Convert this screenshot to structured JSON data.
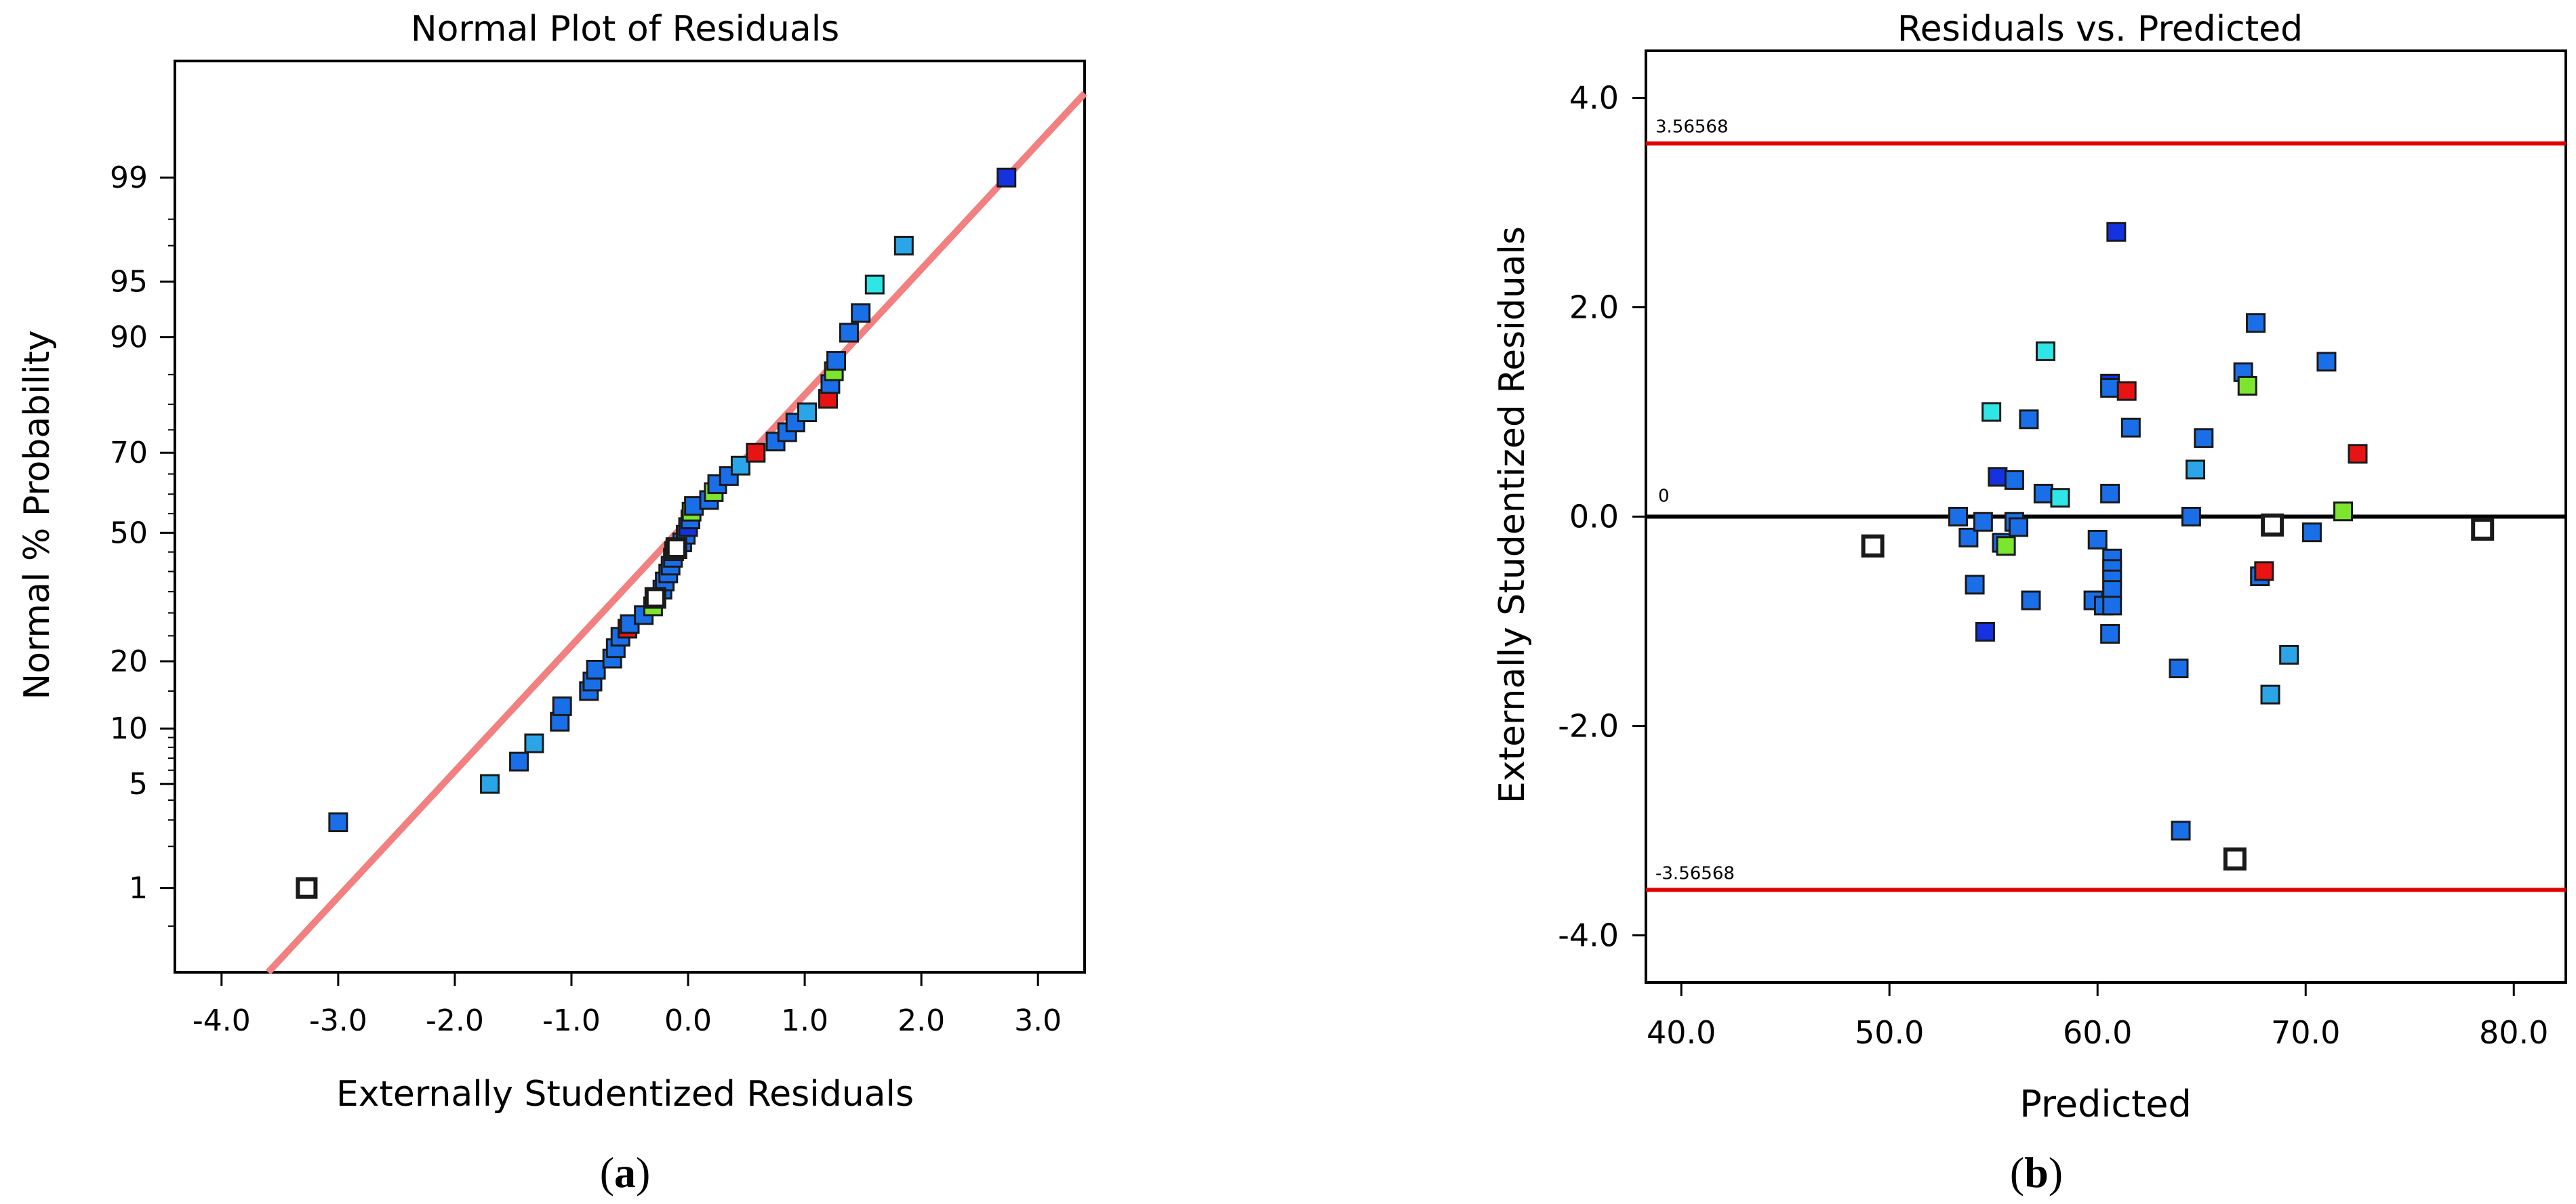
{
  "colors": {
    "frame": "#000000",
    "reference_line": "#f28080",
    "limit_line": "#e00000",
    "zero_line": "#000000",
    "point_stroke": "#1a1a1a",
    "outlier_fill": "#ffffff",
    "palette": {
      "dark_blue": "#1432e0",
      "blue": "#1a6fe8",
      "sky": "#2aa6e8",
      "cyan": "#2ee6e6",
      "green": "#7ce62e",
      "red": "#e81414",
      "white": "#ffffff"
    }
  },
  "chart_data": [
    {
      "type": "scatter",
      "title": "Normal Plot of Residuals",
      "xlabel": "Externally Studentized Residuals",
      "ylabel": "Normal % Probability",
      "caption_letter": "a",
      "xlim": [
        -4.4,
        3.4
      ],
      "ylim": [
        0.2,
        99.9
      ],
      "y_scale": "normal-probability",
      "x_ticks": [
        -4.0,
        -3.0,
        -2.0,
        -1.0,
        0.0,
        1.0,
        2.0,
        3.0
      ],
      "x_tick_labels": [
        "-4.0",
        "-3.0",
        "-2.0",
        "-1.0",
        "0.0",
        "1.0",
        "2.0",
        "3.0"
      ],
      "y_ticks": [
        1,
        5,
        10,
        20,
        50,
        70,
        90,
        95,
        99
      ],
      "y_tick_labels": [
        "1",
        "5",
        "10",
        "20",
        "50",
        "70",
        "90",
        "95",
        "99"
      ],
      "reference_line": {
        "x_start": -3.6,
        "y_start": 0.2,
        "x_end": 3.4,
        "y_end": 99.8
      },
      "points": [
        {
          "x": -3.27,
          "y": 1.0,
          "c": "white",
          "outlier": true
        },
        {
          "x": -3.0,
          "y": 2.9,
          "c": "blue"
        },
        {
          "x": -1.7,
          "y": 5.0,
          "c": "sky"
        },
        {
          "x": -1.45,
          "y": 6.7,
          "c": "blue"
        },
        {
          "x": -1.32,
          "y": 8.4,
          "c": "sky"
        },
        {
          "x": -1.1,
          "y": 10.8,
          "c": "blue"
        },
        {
          "x": -1.08,
          "y": 12.8,
          "c": "blue"
        },
        {
          "x": -0.85,
          "y": 15.0,
          "c": "blue"
        },
        {
          "x": -0.82,
          "y": 16.5,
          "c": "blue"
        },
        {
          "x": -0.79,
          "y": 18.5,
          "c": "blue"
        },
        {
          "x": -0.65,
          "y": 20.5,
          "c": "blue"
        },
        {
          "x": -0.62,
          "y": 22.5,
          "c": "blue"
        },
        {
          "x": -0.58,
          "y": 24.8,
          "c": "blue"
        },
        {
          "x": -0.52,
          "y": 26.5,
          "c": "red"
        },
        {
          "x": -0.5,
          "y": 27.5,
          "c": "blue"
        },
        {
          "x": -0.38,
          "y": 29.5,
          "c": "blue"
        },
        {
          "x": -0.3,
          "y": 31.5,
          "c": "green"
        },
        {
          "x": -0.28,
          "y": 33.5,
          "c": "white",
          "outlier": true
        },
        {
          "x": -0.22,
          "y": 35.5,
          "c": "blue"
        },
        {
          "x": -0.2,
          "y": 37.5,
          "c": "blue"
        },
        {
          "x": -0.17,
          "y": 39.5,
          "c": "blue"
        },
        {
          "x": -0.15,
          "y": 41.5,
          "c": "blue"
        },
        {
          "x": -0.13,
          "y": 43.5,
          "c": "blue"
        },
        {
          "x": -0.12,
          "y": 45.2,
          "c": "blue"
        },
        {
          "x": -0.1,
          "y": 46.0,
          "c": "white",
          "outlier": true
        },
        {
          "x": -0.05,
          "y": 47.5,
          "c": "blue"
        },
        {
          "x": -0.02,
          "y": 49.5,
          "c": "blue"
        },
        {
          "x": 0.0,
          "y": 51.5,
          "c": "dark_blue"
        },
        {
          "x": 0.02,
          "y": 53.5,
          "c": "blue"
        },
        {
          "x": 0.03,
          "y": 55.5,
          "c": "green"
        },
        {
          "x": 0.05,
          "y": 57.0,
          "c": "blue"
        },
        {
          "x": 0.18,
          "y": 58.5,
          "c": "blue"
        },
        {
          "x": 0.22,
          "y": 60.5,
          "c": "green"
        },
        {
          "x": 0.25,
          "y": 62.5,
          "c": "blue"
        },
        {
          "x": 0.35,
          "y": 64.5,
          "c": "blue"
        },
        {
          "x": 0.45,
          "y": 67.0,
          "c": "sky"
        },
        {
          "x": 0.58,
          "y": 70.0,
          "c": "red"
        },
        {
          "x": 0.75,
          "y": 72.5,
          "c": "blue"
        },
        {
          "x": 0.85,
          "y": 74.5,
          "c": "blue"
        },
        {
          "x": 0.92,
          "y": 76.5,
          "c": "blue"
        },
        {
          "x": 1.02,
          "y": 78.5,
          "c": "sky"
        },
        {
          "x": 1.2,
          "y": 81.0,
          "c": "red"
        },
        {
          "x": 1.22,
          "y": 83.5,
          "c": "blue"
        },
        {
          "x": 1.25,
          "y": 85.5,
          "c": "green"
        },
        {
          "x": 1.27,
          "y": 87.0,
          "c": "blue"
        },
        {
          "x": 1.38,
          "y": 90.5,
          "c": "blue"
        },
        {
          "x": 1.48,
          "y": 92.5,
          "c": "blue"
        },
        {
          "x": 1.6,
          "y": 94.8,
          "c": "cyan"
        },
        {
          "x": 1.85,
          "y": 97.0,
          "c": "sky"
        },
        {
          "x": 2.73,
          "y": 99.0,
          "c": "dark_blue"
        }
      ]
    },
    {
      "type": "scatter",
      "title": "Residuals vs. Predicted",
      "xlabel": "Predicted",
      "ylabel": "Externally Studentized Residuals",
      "caption_letter": "b",
      "xlim": [
        38.3,
        82.5
      ],
      "ylim": [
        -4.45,
        4.45
      ],
      "x_ticks": [
        40.0,
        50.0,
        60.0,
        70.0,
        80.0
      ],
      "x_tick_labels": [
        "40.0",
        "50.0",
        "60.0",
        "70.0",
        "80.0"
      ],
      "y_ticks": [
        4.0,
        2.0,
        0.0,
        -2.0,
        -4.0
      ],
      "y_tick_labels": [
        "4.0",
        "2.0",
        "0.0",
        "-2.0",
        "-4.0"
      ],
      "limit_upper": 3.56568,
      "limit_upper_label": "3.56568",
      "limit_lower": -3.56568,
      "limit_lower_label": "-3.56568",
      "zero_line": 0,
      "zero_label": "0",
      "points": [
        {
          "x": 49.2,
          "y": -0.28,
          "c": "white",
          "outlier": true
        },
        {
          "x": 53.3,
          "y": 0.0,
          "c": "blue"
        },
        {
          "x": 53.8,
          "y": -0.2,
          "c": "blue"
        },
        {
          "x": 54.1,
          "y": -0.65,
          "c": "blue"
        },
        {
          "x": 54.5,
          "y": -0.05,
          "c": "blue"
        },
        {
          "x": 54.6,
          "y": -1.1,
          "c": "dark_blue"
        },
        {
          "x": 54.9,
          "y": 1.0,
          "c": "cyan"
        },
        {
          "x": 55.2,
          "y": 0.38,
          "c": "dark_blue"
        },
        {
          "x": 55.4,
          "y": -0.25,
          "c": "blue"
        },
        {
          "x": 55.6,
          "y": -0.28,
          "c": "green"
        },
        {
          "x": 56.0,
          "y": 0.35,
          "c": "blue"
        },
        {
          "x": 56.0,
          "y": -0.05,
          "c": "blue"
        },
        {
          "x": 56.2,
          "y": -0.1,
          "c": "blue"
        },
        {
          "x": 56.7,
          "y": 0.93,
          "c": "blue"
        },
        {
          "x": 56.8,
          "y": -0.8,
          "c": "blue"
        },
        {
          "x": 57.4,
          "y": 0.22,
          "c": "blue"
        },
        {
          "x": 57.5,
          "y": 1.58,
          "c": "cyan"
        },
        {
          "x": 58.2,
          "y": 0.18,
          "c": "cyan"
        },
        {
          "x": 59.8,
          "y": -0.8,
          "c": "blue"
        },
        {
          "x": 60.0,
          "y": -0.22,
          "c": "blue"
        },
        {
          "x": 60.3,
          "y": -0.85,
          "c": "blue"
        },
        {
          "x": 60.6,
          "y": 1.27,
          "c": "dark_blue"
        },
        {
          "x": 60.6,
          "y": 1.23,
          "c": "blue"
        },
        {
          "x": 60.6,
          "y": 0.22,
          "c": "blue"
        },
        {
          "x": 60.7,
          "y": -0.4,
          "c": "blue"
        },
        {
          "x": 60.7,
          "y": -0.5,
          "c": "blue"
        },
        {
          "x": 60.7,
          "y": -0.6,
          "c": "blue"
        },
        {
          "x": 60.7,
          "y": -0.7,
          "c": "blue"
        },
        {
          "x": 60.7,
          "y": -0.85,
          "c": "blue"
        },
        {
          "x": 60.6,
          "y": -1.12,
          "c": "blue"
        },
        {
          "x": 60.9,
          "y": 2.72,
          "c": "dark_blue"
        },
        {
          "x": 61.4,
          "y": 1.2,
          "c": "red"
        },
        {
          "x": 61.6,
          "y": 0.85,
          "c": "blue"
        },
        {
          "x": 63.9,
          "y": -1.45,
          "c": "blue"
        },
        {
          "x": 64.0,
          "y": -3.0,
          "c": "blue"
        },
        {
          "x": 64.5,
          "y": 0.0,
          "c": "blue"
        },
        {
          "x": 64.7,
          "y": 0.45,
          "c": "sky"
        },
        {
          "x": 65.1,
          "y": 0.75,
          "c": "blue"
        },
        {
          "x": 66.6,
          "y": -3.27,
          "c": "white",
          "outlier": true
        },
        {
          "x": 67.0,
          "y": 1.38,
          "c": "blue"
        },
        {
          "x": 67.2,
          "y": 1.25,
          "c": "green"
        },
        {
          "x": 67.6,
          "y": 1.85,
          "c": "blue"
        },
        {
          "x": 67.8,
          "y": -0.57,
          "c": "blue"
        },
        {
          "x": 68.0,
          "y": -0.52,
          "c": "red"
        },
        {
          "x": 68.3,
          "y": -1.7,
          "c": "sky"
        },
        {
          "x": 68.4,
          "y": -0.08,
          "c": "white",
          "outlier": true
        },
        {
          "x": 69.2,
          "y": -1.32,
          "c": "sky"
        },
        {
          "x": 70.3,
          "y": -0.15,
          "c": "blue"
        },
        {
          "x": 71.0,
          "y": 1.48,
          "c": "blue"
        },
        {
          "x": 71.8,
          "y": 0.05,
          "c": "green"
        },
        {
          "x": 72.5,
          "y": 0.6,
          "c": "red"
        },
        {
          "x": 78.5,
          "y": -0.12,
          "c": "white",
          "outlier": true
        }
      ]
    }
  ]
}
